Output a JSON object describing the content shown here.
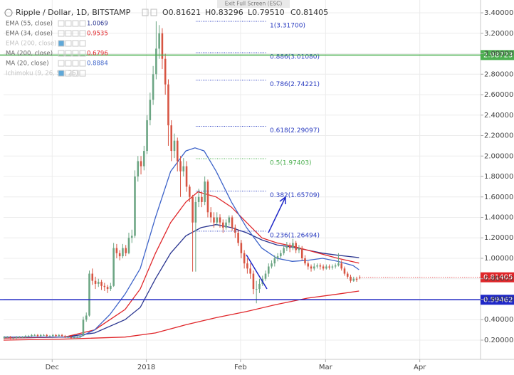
{
  "chart_data": {
    "type": "candlestick",
    "title": "Ripple / Dollar, 1D, BITSTAMP",
    "ohlc_text": [
      "O0.81621",
      "H0.83296",
      "L0.79510",
      "C0.81405"
    ],
    "fullscreen_hint": "Exit Full Screen (ESC)",
    "up_color": "#6ba583",
    "down_color": "#d75442",
    "grid": true,
    "xlim": [
      0,
      157
    ],
    "xticks": [
      {
        "value": 16,
        "label": "Dec"
      },
      {
        "value": 47,
        "label": "2018"
      },
      {
        "value": 78,
        "label": "Feb"
      },
      {
        "value": 106,
        "label": "Mar"
      },
      {
        "value": 137,
        "label": "Apr"
      }
    ],
    "ylim": [
      0.012,
      3.442
    ],
    "yticks": [
      {
        "value": 0.2,
        "label": "0.20000"
      },
      {
        "value": 0.4,
        "label": "0.40000"
      },
      {
        "value": 0.6,
        "label": "0.60000"
      },
      {
        "value": 0.8,
        "label": "0.80000"
      },
      {
        "value": 1.0,
        "label": "1.00000"
      },
      {
        "value": 1.2,
        "label": "1.20000"
      },
      {
        "value": 1.4,
        "label": "1.40000"
      },
      {
        "value": 1.6,
        "label": "1.60000"
      },
      {
        "value": 1.8,
        "label": "1.80000"
      },
      {
        "value": 2.0,
        "label": "2.00000"
      },
      {
        "value": 2.2,
        "label": "2.20000"
      },
      {
        "value": 2.4,
        "label": "2.40000"
      },
      {
        "value": 2.6,
        "label": "2.60000"
      },
      {
        "value": 2.8,
        "label": "2.80000"
      },
      {
        "value": 3.0,
        "label": "3.00000"
      },
      {
        "value": 3.2,
        "label": "3.20000"
      },
      {
        "value": 3.4,
        "label": "3.40000"
      }
    ],
    "candles": [
      [
        0.22,
        0.24,
        0.21,
        0.23
      ],
      [
        0.23,
        0.24,
        0.22,
        0.23
      ],
      [
        0.23,
        0.24,
        0.21,
        0.22
      ],
      [
        0.22,
        0.23,
        0.21,
        0.22
      ],
      [
        0.22,
        0.24,
        0.21,
        0.23
      ],
      [
        0.23,
        0.24,
        0.22,
        0.23
      ],
      [
        0.23,
        0.24,
        0.22,
        0.23
      ],
      [
        0.23,
        0.25,
        0.22,
        0.24
      ],
      [
        0.24,
        0.25,
        0.23,
        0.24
      ],
      [
        0.24,
        0.26,
        0.23,
        0.25
      ],
      [
        0.25,
        0.26,
        0.24,
        0.25
      ],
      [
        0.25,
        0.26,
        0.23,
        0.24
      ],
      [
        0.24,
        0.26,
        0.23,
        0.25
      ],
      [
        0.25,
        0.26,
        0.24,
        0.25
      ],
      [
        0.25,
        0.26,
        0.23,
        0.24
      ],
      [
        0.24,
        0.25,
        0.23,
        0.24
      ],
      [
        0.24,
        0.26,
        0.23,
        0.25
      ],
      [
        0.25,
        0.26,
        0.23,
        0.24
      ],
      [
        0.24,
        0.26,
        0.23,
        0.25
      ],
      [
        0.25,
        0.26,
        0.23,
        0.24
      ],
      [
        0.24,
        0.25,
        0.22,
        0.23
      ],
      [
        0.23,
        0.24,
        0.22,
        0.23
      ],
      [
        0.23,
        0.24,
        0.21,
        0.22
      ],
      [
        0.22,
        0.24,
        0.21,
        0.23
      ],
      [
        0.23,
        0.24,
        0.22,
        0.23
      ],
      [
        0.23,
        0.25,
        0.22,
        0.24
      ],
      [
        0.24,
        0.43,
        0.24,
        0.4
      ],
      [
        0.4,
        0.47,
        0.38,
        0.44
      ],
      [
        0.44,
        0.88,
        0.43,
        0.85
      ],
      [
        0.85,
        0.9,
        0.74,
        0.78
      ],
      [
        0.78,
        0.82,
        0.7,
        0.75
      ],
      [
        0.75,
        0.8,
        0.72,
        0.77
      ],
      [
        0.77,
        0.79,
        0.69,
        0.73
      ],
      [
        0.73,
        0.76,
        0.68,
        0.72
      ],
      [
        0.72,
        0.74,
        0.66,
        0.7
      ],
      [
        0.7,
        0.76,
        0.68,
        0.73
      ],
      [
        0.73,
        1.15,
        0.72,
        1.1
      ],
      [
        1.1,
        1.14,
        1.0,
        1.05
      ],
      [
        1.05,
        1.08,
        0.98,
        1.02
      ],
      [
        1.02,
        1.14,
        1.0,
        1.1
      ],
      [
        1.1,
        1.13,
        1.02,
        1.05
      ],
      [
        1.05,
        1.25,
        1.04,
        1.2
      ],
      [
        1.2,
        1.28,
        1.15,
        1.22
      ],
      [
        1.22,
        1.86,
        1.2,
        1.8
      ],
      [
        1.8,
        2.0,
        1.75,
        1.95
      ],
      [
        1.95,
        2.0,
        1.82,
        1.9
      ],
      [
        1.9,
        2.1,
        1.86,
        2.05
      ],
      [
        2.05,
        2.4,
        2.02,
        2.35
      ],
      [
        2.35,
        2.62,
        2.3,
        2.55
      ],
      [
        2.55,
        2.88,
        2.5,
        2.8
      ],
      [
        2.8,
        3.317,
        2.75,
        3.05
      ],
      [
        3.05,
        3.28,
        2.95,
        3.2
      ],
      [
        3.2,
        3.25,
        2.85,
        2.95
      ],
      [
        2.95,
        3.0,
        2.6,
        2.7
      ],
      [
        2.7,
        2.75,
        2.1,
        2.3
      ],
      [
        2.3,
        2.35,
        1.95,
        2.05
      ],
      [
        2.05,
        2.22,
        1.98,
        2.15
      ],
      [
        2.15,
        2.18,
        1.85,
        1.95
      ],
      [
        1.95,
        2.0,
        1.6,
        1.85
      ],
      [
        1.85,
        1.98,
        1.8,
        1.9
      ],
      [
        1.9,
        1.95,
        1.65,
        1.7
      ],
      [
        1.7,
        1.72,
        1.55,
        1.6
      ],
      [
        1.6,
        1.62,
        0.87,
        1.35
      ],
      [
        1.35,
        1.6,
        0.87,
        1.55
      ],
      [
        1.55,
        1.68,
        1.5,
        1.6
      ],
      [
        1.6,
        1.65,
        1.5,
        1.55
      ],
      [
        1.55,
        1.8,
        1.52,
        1.75
      ],
      [
        1.75,
        1.77,
        1.4,
        1.45
      ],
      [
        1.45,
        1.5,
        1.35,
        1.4
      ],
      [
        1.4,
        1.45,
        1.3,
        1.35
      ],
      [
        1.35,
        1.45,
        1.32,
        1.4
      ],
      [
        1.4,
        1.43,
        1.3,
        1.35
      ],
      [
        1.35,
        1.38,
        1.25,
        1.3
      ],
      [
        1.3,
        1.38,
        1.28,
        1.35
      ],
      [
        1.35,
        1.42,
        1.32,
        1.4
      ],
      [
        1.4,
        1.42,
        1.27,
        1.3
      ],
      [
        1.3,
        1.33,
        1.2,
        1.25
      ],
      [
        1.25,
        1.28,
        1.12,
        1.15
      ],
      [
        1.15,
        1.18,
        1.0,
        1.05
      ],
      [
        1.05,
        1.08,
        0.9,
        0.95
      ],
      [
        0.95,
        1.0,
        0.85,
        0.9
      ],
      [
        0.9,
        0.95,
        0.8,
        0.85
      ],
      [
        0.85,
        0.88,
        0.65,
        0.7
      ],
      [
        0.7,
        0.78,
        0.56,
        0.7
      ],
      [
        0.7,
        0.8,
        0.66,
        0.75
      ],
      [
        0.75,
        0.83,
        0.73,
        0.8
      ],
      [
        0.8,
        0.88,
        0.78,
        0.85
      ],
      [
        0.85,
        0.95,
        0.82,
        0.92
      ],
      [
        0.92,
        0.98,
        0.9,
        0.95
      ],
      [
        0.95,
        1.03,
        0.92,
        1.0
      ],
      [
        1.0,
        1.05,
        0.97,
        1.02
      ],
      [
        1.02,
        1.08,
        1.0,
        1.05
      ],
      [
        1.05,
        1.13,
        1.03,
        1.1
      ],
      [
        1.1,
        1.16,
        1.07,
        1.12
      ],
      [
        1.12,
        1.15,
        1.06,
        1.1
      ],
      [
        1.1,
        1.19,
        1.08,
        1.15
      ],
      [
        1.15,
        1.17,
        1.05,
        1.08
      ],
      [
        1.08,
        1.13,
        1.05,
        1.1
      ],
      [
        1.1,
        1.12,
        0.98,
        1.0
      ],
      [
        1.0,
        1.03,
        0.93,
        0.95
      ],
      [
        0.95,
        0.97,
        0.89,
        0.92
      ],
      [
        0.92,
        0.94,
        0.87,
        0.9
      ],
      [
        0.9,
        0.95,
        0.88,
        0.92
      ],
      [
        0.92,
        0.95,
        0.9,
        0.93
      ],
      [
        0.93,
        0.95,
        0.89,
        0.92
      ],
      [
        0.92,
        0.94,
        0.88,
        0.9
      ],
      [
        0.9,
        0.94,
        0.89,
        0.92
      ],
      [
        0.92,
        0.94,
        0.89,
        0.91
      ],
      [
        0.91,
        0.94,
        0.89,
        0.92
      ],
      [
        0.92,
        0.95,
        0.9,
        0.93
      ],
      [
        0.93,
        1.05,
        0.92,
        0.95
      ],
      [
        0.95,
        0.98,
        0.88,
        0.9
      ],
      [
        0.9,
        0.92,
        0.83,
        0.85
      ],
      [
        0.85,
        0.87,
        0.8,
        0.82
      ],
      [
        0.82,
        0.84,
        0.76,
        0.78
      ],
      [
        0.78,
        0.82,
        0.77,
        0.8
      ],
      [
        0.8,
        0.82,
        0.77,
        0.79
      ],
      [
        0.81621,
        0.83296,
        0.7951,
        0.81405
      ]
    ],
    "indicators": [
      {
        "name": "EMA (55, close)",
        "last": 1.0069,
        "color": "#2a3590",
        "x": [
          0,
          20,
          30,
          40,
          45,
          50,
          55,
          60,
          65,
          70,
          75,
          80,
          85,
          90,
          95,
          100,
          105,
          110,
          117
        ],
        "values": [
          0.22,
          0.23,
          0.27,
          0.4,
          0.52,
          0.8,
          1.05,
          1.22,
          1.3,
          1.33,
          1.3,
          1.25,
          1.18,
          1.13,
          1.11,
          1.08,
          1.05,
          1.03,
          1.0069
        ]
      },
      {
        "name": "EMA (34, close)",
        "last": 0.9535,
        "color": "#e0262a",
        "x": [
          0,
          20,
          30,
          40,
          45,
          50,
          55,
          60,
          64,
          70,
          75,
          80,
          85,
          90,
          95,
          100,
          105,
          110,
          117
        ],
        "values": [
          0.22,
          0.23,
          0.3,
          0.5,
          0.7,
          1.05,
          1.35,
          1.55,
          1.65,
          1.6,
          1.5,
          1.35,
          1.2,
          1.15,
          1.12,
          1.08,
          1.04,
          1.0,
          0.9535
        ]
      },
      {
        "name": "EMA (200, close)",
        "muted": true
      },
      {
        "name": "MA (200, close)",
        "last": 0.6796,
        "color": "#e0262a",
        "x": [
          0,
          20,
          40,
          50,
          60,
          70,
          80,
          90,
          100,
          110,
          117
        ],
        "values": [
          0.2,
          0.21,
          0.23,
          0.27,
          0.35,
          0.42,
          0.48,
          0.55,
          0.61,
          0.65,
          0.6796
        ]
      },
      {
        "name": "MA (20, close)",
        "last": 0.8884,
        "color": "#3d63c9",
        "x": [
          0,
          25,
          30,
          35,
          40,
          45,
          50,
          55,
          60,
          63,
          66,
          70,
          75,
          80,
          85,
          90,
          95,
          100,
          105,
          110,
          115,
          117
        ],
        "values": [
          0.23,
          0.23,
          0.3,
          0.45,
          0.65,
          0.9,
          1.4,
          1.85,
          2.05,
          2.08,
          2.05,
          1.85,
          1.55,
          1.3,
          1.1,
          1.0,
          0.97,
          0.98,
          1.0,
          0.97,
          0.93,
          0.8884
        ]
      },
      {
        "name": "Ichimoku (9, 26, 52, 26)",
        "muted": true
      }
    ],
    "fib_levels": [
      {
        "label": "1(3.31700)",
        "value": 3.317,
        "color": "#2a3cc0"
      },
      {
        "label": "0.886(3.01080)",
        "value": 3.0108,
        "color": "#2a3cc0"
      },
      {
        "label": "0.786(2.74221)",
        "value": 2.74221,
        "color": "#2a3cc0"
      },
      {
        "label": "0.618(2.29097)",
        "value": 2.29097,
        "color": "#2a3cc0"
      },
      {
        "label": "0.5(1.97403)",
        "value": 1.97403,
        "color": "#4caf50"
      },
      {
        "label": "0.382(1.65709)",
        "value": 1.65709,
        "color": "#2a3cc0"
      },
      {
        "label": "0.236(1.26494)",
        "value": 1.26494,
        "color": "#2a3cc0"
      }
    ],
    "hlines": [
      {
        "value": 2.98723,
        "label": "2.98723",
        "color": "#4caf50"
      },
      {
        "value": 0.59462,
        "label": "0.59462",
        "color": "#1f28c8"
      }
    ],
    "last_price": {
      "value": 0.81405,
      "label": "0.81405",
      "color": "#e0262a"
    }
  }
}
